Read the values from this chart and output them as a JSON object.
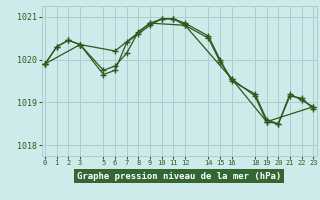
{
  "title": "Graphe pression niveau de la mer (hPa)",
  "bg_color": "#ceeaea",
  "line_color": "#2d5a1b",
  "grid_color": "#a8d0d0",
  "xlabel_bg": "#3a7a3a",
  "xlabel_fg": "#ffffff",
  "xlim": [
    -0.3,
    23.3
  ],
  "ylim": [
    1017.75,
    1021.25
  ],
  "yticks": [
    1018,
    1019,
    1020,
    1021
  ],
  "xticks": [
    0,
    1,
    2,
    3,
    5,
    6,
    7,
    8,
    9,
    10,
    11,
    12,
    14,
    15,
    16,
    18,
    19,
    20,
    21,
    22,
    23
  ],
  "series1": {
    "x": [
      0,
      1,
      2,
      3,
      5,
      6,
      7,
      8,
      9,
      10,
      11,
      12,
      14,
      15,
      16,
      18,
      19,
      20,
      21,
      22,
      23
    ],
    "y": [
      1019.9,
      1020.3,
      1020.45,
      1020.35,
      1019.65,
      1019.75,
      1020.4,
      1020.6,
      1020.8,
      1020.95,
      1020.95,
      1020.8,
      1020.5,
      1019.95,
      1019.55,
      1019.15,
      1018.55,
      1018.5,
      1019.2,
      1019.05,
      1018.9
    ]
  },
  "series2": {
    "x": [
      0,
      1,
      2,
      3,
      5,
      6,
      7,
      8,
      9,
      10,
      11,
      12,
      14,
      15,
      16,
      18,
      19,
      20,
      21,
      22,
      23
    ],
    "y": [
      1019.9,
      1020.3,
      1020.45,
      1020.35,
      1019.75,
      1019.85,
      1020.15,
      1020.65,
      1020.85,
      1020.95,
      1020.95,
      1020.85,
      1020.55,
      1020.0,
      1019.5,
      1019.2,
      1018.6,
      1018.5,
      1019.15,
      1019.1,
      1018.85
    ]
  },
  "series3": {
    "x": [
      0,
      3,
      6,
      9,
      12,
      16,
      19,
      23
    ],
    "y": [
      1019.9,
      1020.35,
      1020.2,
      1020.85,
      1020.8,
      1019.55,
      1018.55,
      1018.9
    ]
  }
}
